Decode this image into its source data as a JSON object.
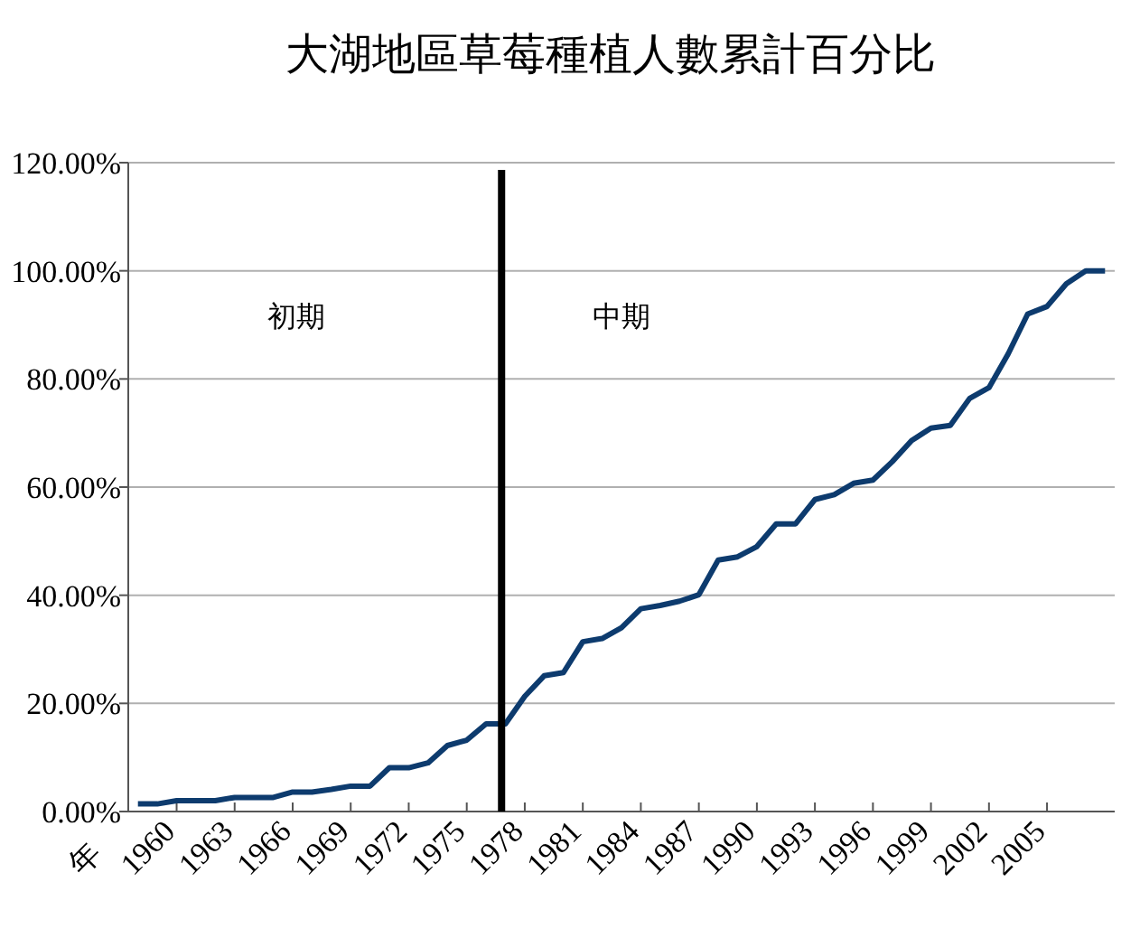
{
  "chart_data": {
    "type": "line",
    "title": "大湖地區草莓種植人數累計百分比",
    "xlabel": "年",
    "x": [
      1958,
      1959,
      1960,
      1961,
      1962,
      1963,
      1964,
      1965,
      1966,
      1967,
      1968,
      1969,
      1970,
      1971,
      1972,
      1973,
      1974,
      1975,
      1976,
      1977,
      1978,
      1979,
      1980,
      1981,
      1982,
      1983,
      1984,
      1985,
      1986,
      1987,
      1988,
      1989,
      1990,
      1991,
      1992,
      1993,
      1994,
      1995,
      1996,
      1997,
      1998,
      1999,
      2000,
      2001,
      2002,
      2003,
      2004,
      2005,
      2006,
      2007,
      2008
    ],
    "series": [
      {
        "color": "#0d3b6e",
        "values": [
          1.4,
          1.4,
          2.0,
          2.0,
          2.0,
          2.6,
          2.6,
          2.6,
          3.6,
          3.6,
          4.1,
          4.7,
          4.7,
          8.1,
          8.1,
          9.0,
          12.2,
          13.2,
          16.2,
          16.2,
          21.3,
          25.1,
          25.7,
          31.4,
          32.0,
          34.0,
          37.5,
          38.1,
          38.9,
          40.1,
          46.5,
          47.1,
          49.0,
          53.2,
          53.2,
          57.7,
          58.6,
          60.7,
          61.3,
          64.7,
          68.6,
          70.9,
          71.4,
          76.4,
          78.4,
          84.7,
          92.0,
          93.4,
          97.6,
          100,
          100
        ]
      }
    ],
    "xlim": [
      1957.5,
      2008.5
    ],
    "xticks": [
      {
        "value": 1960,
        "label": "1960"
      },
      {
        "value": 1963,
        "label": "1963"
      },
      {
        "value": 1966,
        "label": "1966"
      },
      {
        "value": 1969,
        "label": "1969"
      },
      {
        "value": 1972,
        "label": "1972"
      },
      {
        "value": 1975,
        "label": "1975"
      },
      {
        "value": 1978,
        "label": "1978"
      },
      {
        "value": 1981,
        "label": "1981"
      },
      {
        "value": 1984,
        "label": "1984"
      },
      {
        "value": 1987,
        "label": "1987"
      },
      {
        "value": 1990,
        "label": "1990"
      },
      {
        "value": 1993,
        "label": "1993"
      },
      {
        "value": 1996,
        "label": "1996"
      },
      {
        "value": 1999,
        "label": "1999"
      },
      {
        "value": 2002,
        "label": "2002"
      },
      {
        "value": 2005,
        "label": "2005"
      }
    ],
    "ylim": [
      0,
      120
    ],
    "yticks": [
      {
        "value": 0,
        "label": "0.00%"
      },
      {
        "value": 20,
        "label": "20.00%"
      },
      {
        "value": 40,
        "label": "40.00%"
      },
      {
        "value": 60,
        "label": "60.00%"
      },
      {
        "value": 80,
        "label": "80.00%"
      },
      {
        "value": 100,
        "label": "100.00%"
      },
      {
        "value": 120,
        "label": "120.00%"
      }
    ],
    "grid": "y",
    "marker": "none",
    "line_style": "solid",
    "ref_lines": [
      {
        "axis": "x",
        "value": 1976.8,
        "color": "#000000",
        "line_style": "solid"
      }
    ],
    "annotations": [
      "初期",
      "中期"
    ]
  }
}
